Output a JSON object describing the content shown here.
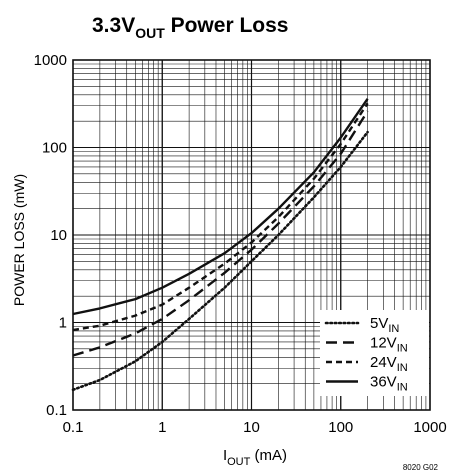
{
  "chart_data": {
    "type": "line",
    "title": {
      "main": "3.3V",
      "sub": "OUT",
      "rest": " Power Loss"
    },
    "xlabel": {
      "main": "I",
      "sub": "OUT",
      "rest": " (mA)"
    },
    "ylabel": "POWER LOSS (mW)",
    "xscale": "log",
    "yscale": "log",
    "xlim": [
      0.1,
      1000
    ],
    "ylim": [
      0.1,
      1000
    ],
    "x_ticks": [
      "0.1",
      "1",
      "10",
      "100",
      "1000"
    ],
    "y_ticks": [
      "0.1",
      "1",
      "10",
      "100",
      "1000"
    ],
    "grid": true,
    "legend_position": "bottom-right",
    "footnote": "8020 G02",
    "series": [
      {
        "name": "5V",
        "name_sub": "IN",
        "style": "dotted",
        "x": [
          0.1,
          0.2,
          0.5,
          1,
          2,
          5,
          10,
          20,
          50,
          100,
          200
        ],
        "y": [
          0.17,
          0.22,
          0.36,
          0.6,
          1.1,
          2.5,
          5.0,
          10,
          27,
          60,
          150
        ]
      },
      {
        "name": "12V",
        "name_sub": "IN",
        "style": "long-dash",
        "x": [
          0.1,
          0.2,
          0.5,
          1,
          2,
          5,
          10,
          20,
          50,
          100,
          200
        ],
        "y": [
          0.42,
          0.52,
          0.75,
          1.1,
          1.8,
          3.7,
          6.8,
          13.5,
          36,
          85,
          260
        ]
      },
      {
        "name": "24V",
        "name_sub": "IN",
        "style": "short-dash",
        "x": [
          0.1,
          0.2,
          0.5,
          1,
          2,
          5,
          10,
          20,
          50,
          100,
          200
        ],
        "y": [
          0.82,
          0.92,
          1.2,
          1.6,
          2.5,
          4.7,
          8.2,
          16,
          44,
          110,
          320
        ]
      },
      {
        "name": "36V",
        "name_sub": "IN",
        "style": "solid",
        "x": [
          0.1,
          0.2,
          0.5,
          1,
          2,
          5,
          10,
          20,
          50,
          100,
          200
        ],
        "y": [
          1.25,
          1.45,
          1.85,
          2.5,
          3.6,
          6.2,
          10.5,
          20,
          52,
          130,
          360
        ]
      }
    ]
  }
}
